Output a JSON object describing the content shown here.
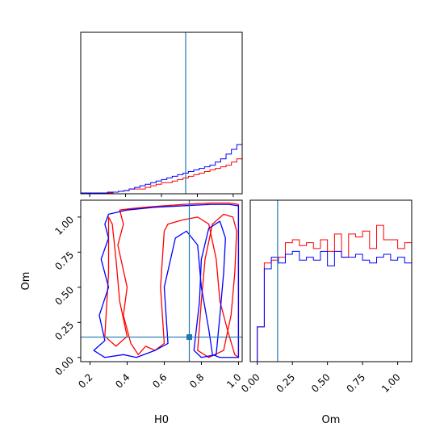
{
  "chart_data": {
    "type": "corner",
    "parameters": [
      "H0",
      "Om"
    ],
    "truths": {
      "H0": 0.735,
      "Om": 0.145
    },
    "series_colors": [
      "#ff0000",
      "#0000ff"
    ],
    "truth_color": "#1f77b4",
    "panels": [
      {
        "id": "hist-H0",
        "type": "histogram",
        "x_range": [
          0.15,
          1.05
        ],
        "bin_width": 0.03,
        "bins_start": 0.15,
        "series": [
          {
            "values": [
              0.5,
              0.5,
              0.5,
              0.5,
              0.5,
              0.5,
              1,
              1.5,
              2,
              3,
              3,
              3,
              4,
              5,
              6,
              7,
              7,
              8,
              9,
              10,
              11,
              12,
              13,
              14,
              15,
              16,
              17,
              18,
              20,
              22,
              25,
              28,
              32,
              37,
              42,
              46,
              50,
              55,
              61,
              66,
              70,
              74,
              78,
              80,
              84,
              85,
              88,
              90,
              92,
              94,
              96,
              97,
              97,
              95,
              92,
              88,
              85,
              80,
              74,
              70,
              66,
              60,
              54,
              48,
              42,
              36,
              30,
              24,
              18,
              13,
              8,
              4
            ]
          },
          {
            "values": [
              0.5,
              0.5,
              0.5,
              0.5,
              0.5,
              1,
              1,
              1.5,
              2,
              3,
              4,
              5,
              6,
              7,
              8,
              9,
              10,
              11,
              12,
              13,
              14,
              15,
              16,
              17,
              18,
              20,
              22,
              25,
              28,
              31,
              33,
              35,
              36,
              38,
              40,
              42,
              44,
              46,
              48,
              50,
              52,
              54,
              56,
              58,
              60,
              62,
              64,
              66,
              68,
              70,
              72,
              74,
              76,
              77,
              78,
              79,
              79,
              78,
              77,
              76,
              74,
              71,
              68,
              64,
              60,
              55,
              50,
              44,
              38,
              30,
              22,
              12,
              4
            ]
          }
        ]
      },
      {
        "id": "hist-Om",
        "type": "histogram",
        "x_range": [
          -0.05,
          1.1
        ],
        "bin_width": 0.05,
        "bins_start": 0.0,
        "series": [
          {
            "values": [
              12,
              34,
              35,
              36,
              41,
              42,
              40,
              41,
              39,
              42,
              38,
              44,
              36,
              44,
              43,
              45,
              39,
              47,
              42,
              42,
              39,
              41,
              44,
              39,
              45,
              46,
              41,
              47,
              53,
              48,
              44,
              43,
              40,
              0
            ]
          },
          {
            "values": [
              12,
              32,
              36,
              34,
              37,
              38,
              35,
              36,
              35,
              38,
              33,
              38,
              36,
              36,
              37,
              35,
              34,
              36,
              37,
              35,
              36,
              34,
              35,
              36,
              34,
              35,
              33,
              35,
              38,
              33,
              36,
              34,
              33,
              0
            ]
          }
        ]
      },
      {
        "id": "contour-H0-Om",
        "type": "contour",
        "x_range": [
          0.15,
          1.02
        ],
        "y_range": [
          -0.03,
          1.12
        ],
        "xlabel": "H0",
        "ylabel": "Om",
        "x_ticks": [
          0.2,
          0.4,
          0.6,
          0.8,
          1.0
        ],
        "x_tick_labels": [
          "0.2",
          "0.4",
          "0.6",
          "0.8",
          "1.0"
        ],
        "y_ticks": [
          0.0,
          0.25,
          0.5,
          0.75,
          1.0
        ],
        "y_tick_labels": [
          "0.00",
          "0.25",
          "0.50",
          "0.75",
          "1.00"
        ],
        "series": [
          {
            "contours": [
              [
                [
                  0.36,
                  1.05
                ],
                [
                  0.42,
                  1.06
                ],
                [
                  0.5,
                  1.07
                ],
                [
                  0.6,
                  1.08
                ],
                [
                  0.7,
                  1.09
                ],
                [
                  0.85,
                  1.1
                ],
                [
                  0.95,
                  1.1
                ],
                [
                  1.0,
                  1.09
                ],
                [
                  1.0,
                  0.0
                ],
                [
                  0.98,
                  0.02
                ],
                [
                  0.94,
                  0.2
                ],
                [
                  0.9,
                  0.4
                ],
                [
                  0.88,
                  0.7
                ],
                [
                  0.84,
                  0.95
                ],
                [
                  0.78,
                  1.0
                ],
                [
                  0.7,
                  0.98
                ],
                [
                  0.62,
                  0.95
                ],
                [
                  0.6,
                  0.9
                ],
                [
                  0.58,
                  0.5
                ],
                [
                  0.6,
                  0.1
                ],
                [
                  0.55,
                  0.05
                ],
                [
                  0.5,
                  0.08
                ],
                [
                  0.46,
                  0.02
                ],
                [
                  0.42,
                  0.1
                ],
                [
                  0.38,
                  0.3
                ],
                [
                  0.4,
                  0.5
                ],
                [
                  0.35,
                  0.8
                ],
                [
                  0.38,
                  0.95
                ],
                [
                  0.36,
                  1.05
                ]
              ],
              [
                [
                  0.78,
                  0.05
                ],
                [
                  0.84,
                  0.0
                ],
                [
                  0.92,
                  0.05
                ],
                [
                  0.96,
                  0.3
                ],
                [
                  0.98,
                  0.6
                ],
                [
                  0.99,
                  0.9
                ],
                [
                  0.97,
                  1.0
                ],
                [
                  0.92,
                  1.02
                ],
                [
                  0.86,
                  0.95
                ],
                [
                  0.82,
                  0.7
                ],
                [
                  0.8,
                  0.4
                ],
                [
                  0.78,
                  0.05
                ]
              ],
              [
                [
                  0.28,
                  0.15
                ],
                [
                  0.34,
                  0.08
                ],
                [
                  0.4,
                  0.15
                ],
                [
                  0.36,
                  0.4
                ],
                [
                  0.34,
                  0.7
                ],
                [
                  0.32,
                  0.95
                ],
                [
                  0.3,
                  1.0
                ],
                [
                  0.3,
                  0.6
                ],
                [
                  0.28,
                  0.15
                ]
              ]
            ]
          },
          {
            "contours": [
              [
                [
                  0.3,
                  1.02
                ],
                [
                  0.4,
                  1.05
                ],
                [
                  0.55,
                  1.07
                ],
                [
                  0.7,
                  1.08
                ],
                [
                  0.85,
                  1.09
                ],
                [
                  0.95,
                  1.09
                ],
                [
                  1.0,
                  1.08
                ],
                [
                  1.0,
                  0.0
                ],
                [
                  0.9,
                  0.0
                ],
                [
                  0.86,
                  0.02
                ],
                [
                  0.84,
                  0.2
                ],
                [
                  0.8,
                  0.5
                ],
                [
                  0.78,
                  0.8
                ],
                [
                  0.72,
                  0.9
                ],
                [
                  0.66,
                  0.85
                ],
                [
                  0.6,
                  0.5
                ],
                [
                  0.62,
                  0.1
                ],
                [
                  0.55,
                  0.05
                ],
                [
                  0.45,
                  0.0
                ],
                [
                  0.38,
                  0.02
                ],
                [
                  0.28,
                  0.0
                ],
                [
                  0.22,
                  0.05
                ],
                [
                  0.28,
                  0.12
                ],
                [
                  0.25,
                  0.3
                ],
                [
                  0.3,
                  0.5
                ],
                [
                  0.26,
                  0.7
                ],
                [
                  0.3,
                  0.85
                ],
                [
                  0.28,
                  0.95
                ],
                [
                  0.3,
                  1.02
                ]
              ],
              [
                [
                  0.76,
                  0.05
                ],
                [
                  0.8,
                  0.0
                ],
                [
                  0.88,
                  0.02
                ],
                [
                  0.9,
                  0.3
                ],
                [
                  0.92,
                  0.6
                ],
                [
                  0.93,
                  0.85
                ],
                [
                  0.9,
                  0.97
                ],
                [
                  0.84,
                  0.92
                ],
                [
                  0.8,
                  0.7
                ],
                [
                  0.79,
                  0.4
                ],
                [
                  0.76,
                  0.05
                ]
              ]
            ]
          }
        ]
      }
    ]
  }
}
